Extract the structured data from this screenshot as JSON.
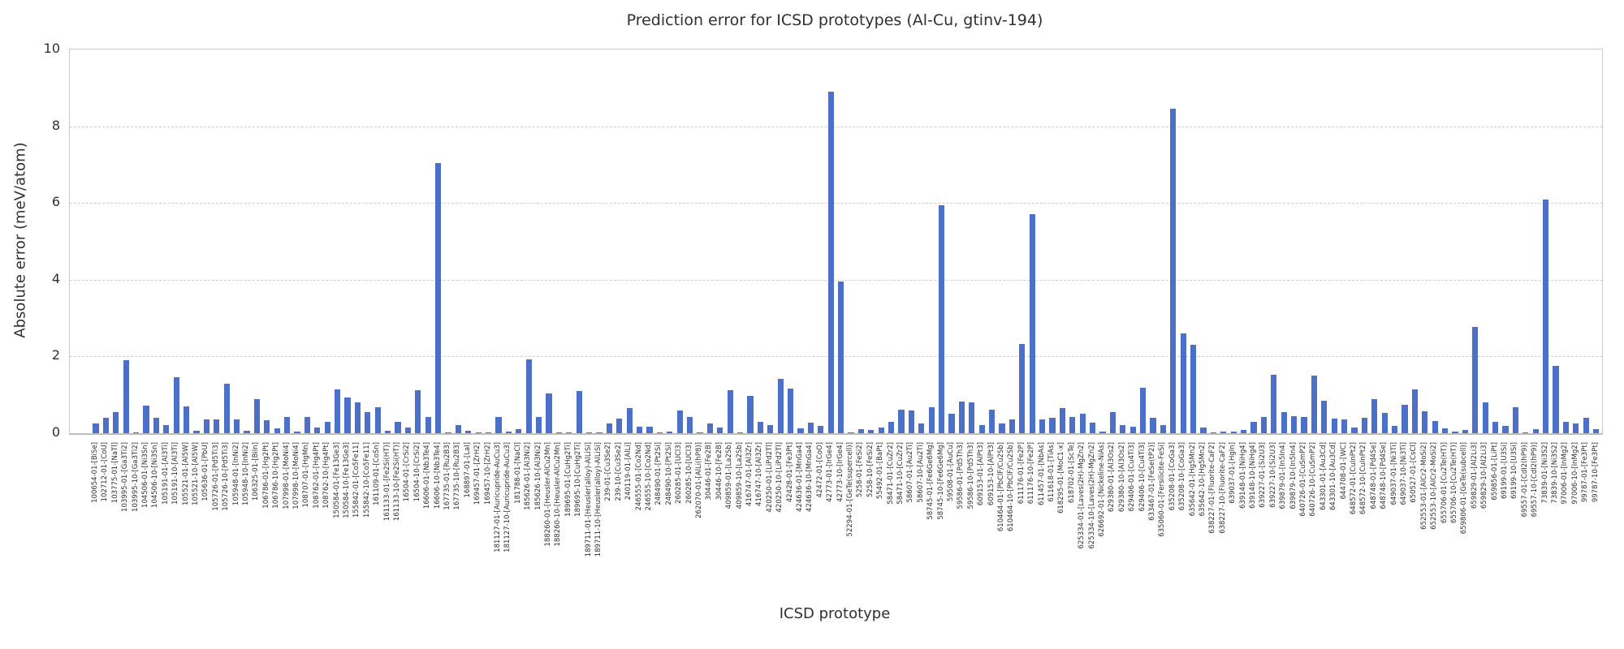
{
  "chart_data": {
    "type": "bar",
    "title": "Prediction error for ICSD prototypes (Al-Cu, gtinv-194)",
    "xlabel": "ICSD prototype",
    "ylabel": "Absolute error (meV/atom)",
    "ylim": [
      0,
      10
    ],
    "yticks": [
      0,
      2,
      4,
      6,
      8,
      10
    ],
    "grid": "horizontal dashed gridlines at 2, 4, 6, 8",
    "legend": "none",
    "bar_color": "#4c6fc7",
    "gridline_color": "#cecece",
    "categories": [
      "100654-01-[BiSe]",
      "102712-01-[CoU]",
      "103775-01-[NaTl]",
      "103995-01-[Ga3Ti2]",
      "103995-10-[Ga3Ti2]",
      "104506-01-[Ni3Sn]",
      "104506-10-[Ni3Sn]",
      "105191-01-[Al3Ti]",
      "105191-10-[Al3Ti]",
      "105521-01-[Al5W]",
      "105521-10-[Al5W]",
      "105636-01-[PbU]",
      "105726-01-[Pd5Ti3]",
      "105726-10-[Pd5Ti3]",
      "105948-01-[InNi2]",
      "105948-10-[InNi2]",
      "106325-01-[BiIn]",
      "106786-01-[Hg2Pt]",
      "106786-10-[Hg2Pt]",
      "107998-01-[MoNi4]",
      "107998-10-[MoNi4]",
      "108707-01-[HgMn]",
      "108762-01-[Hg4Pt]",
      "108762-10-[Hg4Pt]",
      "150584-01-[Fe13Ge3]",
      "150584-10-[Fe13Ge3]",
      "155842-01-[Co5Fe11]",
      "155842-10-[Co5Fe11]",
      "161109-01-[CoSn]",
      "161133-01-[Fe2Si(HT)]",
      "161133-10-[Fe2Si(HT)]",
      "16504-01-[CrSi2]",
      "16504-10-[CrSi2]",
      "16606-01-[Nb3Te4]",
      "16606-10-[Nb3Te4]",
      "167735-01-[Ru2B3]",
      "167735-10-[Ru2B3]",
      "168897-01-[LaI]",
      "169457-01-[ZrH2]",
      "169457-10-[ZrH2]",
      "181127-01-[Auricupride-AuCu3]",
      "181127-10-[Auricupride-AuCu3]",
      "181788-01-[NaCl]",
      "185626-01-[Al3Ni2]",
      "185626-10-[Al3Ni2]",
      "188260-01-[Heusler-AlCu2Mn]",
      "188260-10-[Heusler-AlCu2Mn]",
      "189695-01-[CuHg2Ti]",
      "189695-10-[CuHg2Ti]",
      "189711-01-[Heusler(alloy)-AlLiSi]",
      "189711-10-[Heusler(alloy)-AlLiSi]",
      "239-01-[Cu3Se2]",
      "239-10-[Cu3Se2]",
      "240119-01-[AlLi]",
      "246555-01-[Co2Nd]",
      "246555-10-[Co2Nd]",
      "248490-01-[Pt2Si]",
      "248490-10-[Pt2Si]",
      "260285-01-[UCl3]",
      "260285-10-[UCl3]",
      "262070-01-[AlLi(hP8)]",
      "30446-01-[Fe2B]",
      "30446-10-[Fe2B]",
      "409859-01-[La2Sb]",
      "409859-10-[La2Sb]",
      "416747-01-[Al3Zr]",
      "416747-10-[Al3Zr]",
      "420250-01-[LiPd2Tl]",
      "420250-10-[LiPd2Tl]",
      "42428-01-[Fe3Pt]",
      "424636-01-[MnGa4]",
      "424636-10-[MnGa4]",
      "42472-01-[CoO]",
      "42773-01-[IrGe4]",
      "42773-10-[IrGe4]",
      "52294-01-[GeTe(supercell)]",
      "5258-01-[FeSi2]",
      "5258-10-[FeSi2]",
      "55492-01-[BaPt]",
      "58471-01-[CuZr2]",
      "58471-10-[CuZr2]",
      "58607-01-[Au2Ti]",
      "58607-10-[Au2Ti]",
      "58745-01-[Fe6Ge6Mg]",
      "58745-10-[Fe6Ge6Mg]",
      "59508-01-[AuCu]",
      "59586-01-[Pd5Th3]",
      "59586-10-[Pd5Th3]",
      "609153-01-[AlPt3]",
      "609153-10-[AlPt3]",
      "610464-01-[PbClF/Cu2Sb]",
      "610464-10-[PbClF/Cu2Sb]",
      "611176-01-[Fe2P]",
      "611176-10-[Fe2P]",
      "611457-01-[NbAs]",
      "611618-01-[TiAs]",
      "618295-01-[MoC1-x]",
      "618702-01-[ScTe]",
      "625334-01-[Laves(2H)-MgZn2]",
      "625334-10-[Laves(2H)-MgZn2]",
      "626692-01-[Nickeline-NiAs]",
      "629380-01-[Al3Os2]",
      "629380-10-[Al3Os2]",
      "629406-01-[Cu4Ti3]",
      "629406-10-[Cu4Ti3]",
      "633467-01-[FeSe(tP2)]",
      "635060-01-[Fersilicite-FeSi]",
      "635208-01-[CoGa3]",
      "635208-10-[CoGa3]",
      "635642-01-[Hg5Mn2]",
      "635642-10-[Hg5Mn2]",
      "638227-01-[Fluorite-CaF2]",
      "638227-10-[Fluorite-CaF2]",
      "639037-01-[HgIn]",
      "639148-01-[NiHg4]",
      "639148-10-[NiHg4]",
      "639227-01-[Si2U3]",
      "639227-10-[Si2U3]",
      "639879-01-[In5In4]",
      "639879-10-[In5In4]",
      "640726-01-[CuSmP2]",
      "640726-10-[CuSmP2]",
      "643301-01-[Au3Cd]",
      "643301-10-[Au3Cd]",
      "644708-01-[WC]",
      "648572-01-[CuInPt2]",
      "648572-10-[CuInPt2]",
      "648748-01-[Pd4Se]",
      "648748-10-[Pd4Se]",
      "649037-01-[Ni3Ti]",
      "649037-10-[Ni3Ti]",
      "650527-01-[CsCl]",
      "652553-01-[AlCr2-MoSi2]",
      "652553-10-[AlCr2-MoSi2]",
      "655706-01-[Cu2Te(HT)]",
      "655706-10-[Cu2Te(HT)]",
      "659806-01-[GeTe(subcell)]",
      "659829-01-[Al2Li3]",
      "659829-10-[Al2Li3]",
      "659856-01-[LiPt]",
      "69199-01-[U3Si]",
      "69199-10-[U3Si]",
      "69557-01-[CdI2(hP9)]",
      "69557-10-[CdI2(hP9)]",
      "73839-01-[Ni3S2]",
      "73839-10-[Ni3S2]",
      "97006-01-[InMg2]",
      "97006-10-[InMg2]",
      "99787-01-[Fe3Pt]",
      "99787-10-[Fe3Pt]"
    ],
    "values": [
      0.26,
      0.4,
      0.55,
      1.91,
      0.03,
      0.72,
      0.4,
      0.22,
      1.45,
      0.7,
      0.06,
      0.35,
      0.37,
      1.3,
      0.37,
      0.07,
      0.88,
      0.33,
      0.13,
      0.42,
      0.04,
      0.43,
      0.15,
      0.3,
      1.15,
      0.92,
      0.81,
      0.55,
      0.67,
      0.06,
      0.3,
      0.15,
      1.13,
      0.42,
      7.05,
      0.03,
      0.22,
      0.07,
      0.02,
      0.02,
      0.42,
      0.05,
      0.1,
      1.92,
      0.42,
      1.03,
      0.02,
      0.02,
      1.1,
      0.03,
      0.02,
      0.26,
      0.38,
      0.65,
      0.18,
      0.17,
      0.02,
      0.05,
      0.6,
      0.42,
      0.03,
      0.25,
      0.15,
      1.12,
      0.02,
      0.97,
      0.3,
      0.22,
      1.42,
      1.17,
      0.12,
      0.27,
      0.2,
      8.91,
      3.95,
      0.02,
      0.1,
      0.08,
      0.15,
      0.3,
      0.62,
      0.6,
      0.25,
      0.68,
      5.95,
      0.5,
      0.82,
      0.8,
      0.22,
      0.62,
      0.25,
      0.35,
      2.32,
      5.7,
      0.35,
      0.4,
      0.65,
      0.42,
      0.5,
      0.28,
      0.05,
      0.55,
      0.22,
      0.18,
      1.18,
      0.4,
      0.22,
      8.46,
      2.6,
      2.3,
      0.15,
      0.02,
      0.05,
      0.05,
      0.08,
      0.3,
      0.42,
      1.52,
      0.55,
      0.45,
      0.42,
      1.5,
      0.85,
      0.38,
      0.35,
      0.15,
      0.4,
      0.88,
      0.52,
      0.2,
      0.75,
      1.15,
      0.58,
      0.32,
      0.12,
      0.05,
      0.08,
      2.78,
      0.8,
      0.3,
      0.2,
      0.68,
      0.02,
      0.1,
      6.08,
      1.76,
      0.3,
      0.25,
      0.4,
      0.1
    ]
  }
}
